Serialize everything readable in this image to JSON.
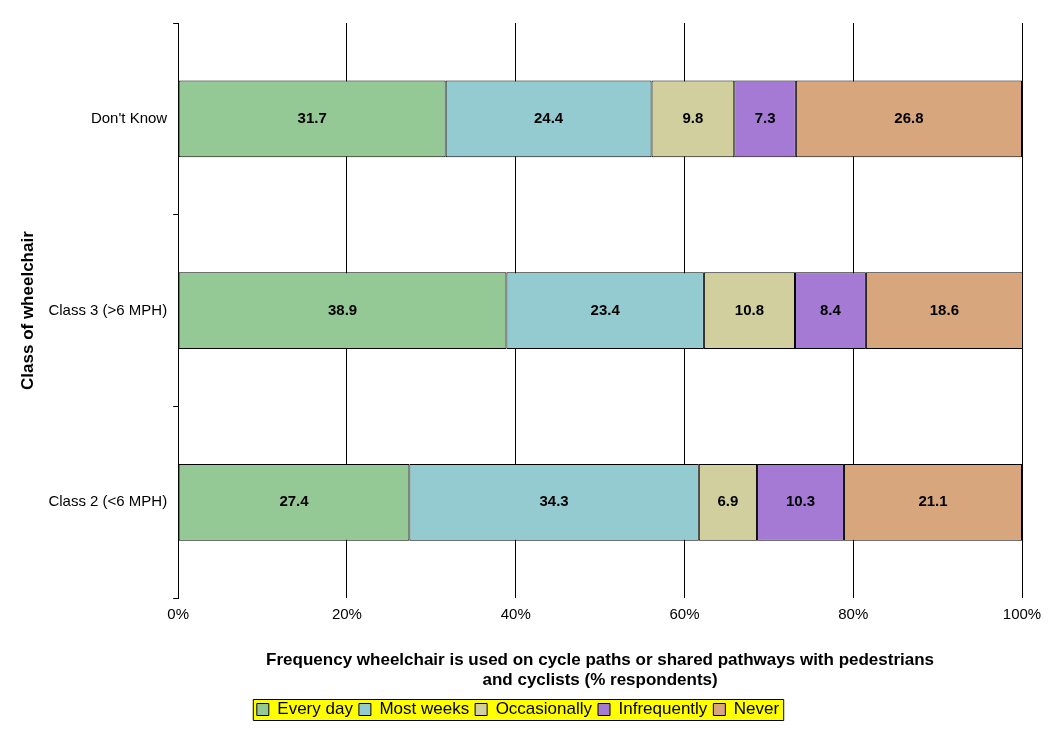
{
  "chart_data": {
    "type": "bar",
    "orientation": "horizontal",
    "stacked": true,
    "xlabel": "Frequency wheelchair is used on cycle paths or shared pathways with pedestrians and cyclists (% respondents)",
    "ylabel": "Class of wheelchair",
    "categories": [
      "Don't Know",
      "Class 3 (>6 MPH)",
      "Class 2 (<6 MPH)"
    ],
    "series": [
      {
        "name": "Every day",
        "color": "#94c894",
        "values": [
          31.7,
          38.9,
          27.4
        ]
      },
      {
        "name": "Most weeks",
        "color": "#94cbd0",
        "values": [
          24.4,
          23.4,
          34.3
        ]
      },
      {
        "name": "Occasionally",
        "color": "#d2cf9e",
        "values": [
          9.8,
          10.8,
          6.9
        ]
      },
      {
        "name": "Infrequently",
        "color": "#a47ad4",
        "values": [
          7.3,
          8.4,
          10.3
        ]
      },
      {
        "name": "Never",
        "color": "#d8a67c",
        "values": [
          26.8,
          18.6,
          21.1
        ]
      }
    ],
    "xlim": [
      0,
      100
    ],
    "xticks": [
      {
        "value": 0,
        "label": "0%"
      },
      {
        "value": 20,
        "label": "20%"
      },
      {
        "value": 40,
        "label": "40%"
      },
      {
        "value": 60,
        "label": "60%"
      },
      {
        "value": 80,
        "label": "80%"
      },
      {
        "value": 100,
        "label": "100%"
      }
    ],
    "grid": "x",
    "legend": "bottom",
    "data_labels": true
  }
}
